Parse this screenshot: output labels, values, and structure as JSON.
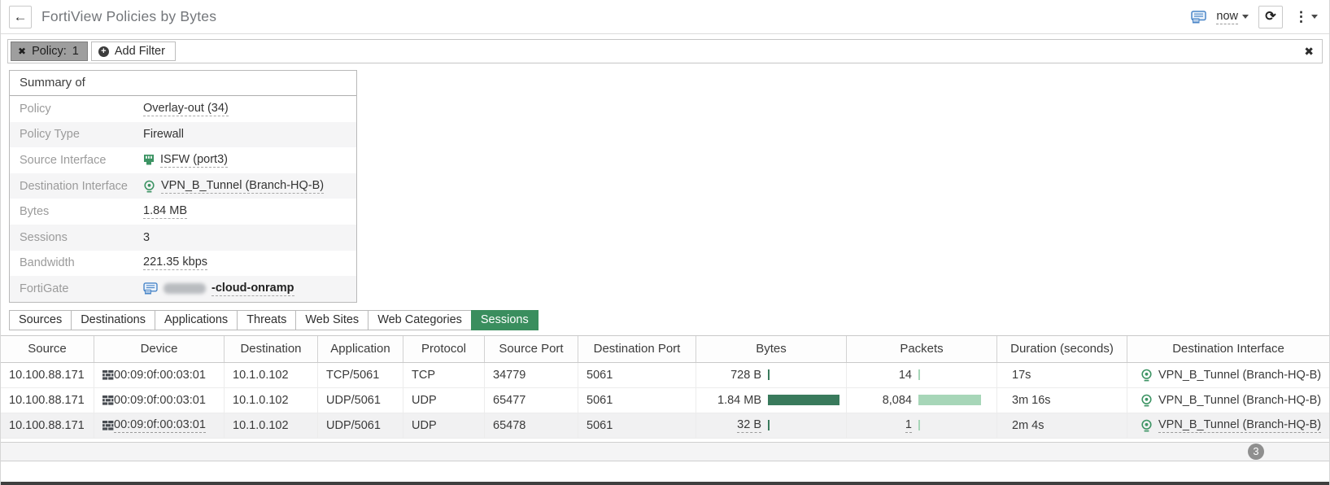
{
  "header": {
    "title": "FortiView Policies by Bytes",
    "back_label": "←",
    "time_label": "now",
    "refresh_icon": "⟳",
    "more_icon": "⋮"
  },
  "filter_bar": {
    "chip": {
      "remove_icon": "✖",
      "label": "Policy:",
      "value": "1"
    },
    "add_filter_label": "Add Filter",
    "add_filter_icon": "+",
    "close_icon": "✖"
  },
  "summary": {
    "title": "Summary of",
    "rows": [
      {
        "label": "Policy",
        "value": "Overlay-out (34)",
        "link": true
      },
      {
        "label": "Policy Type",
        "value": "Firewall",
        "link": false
      },
      {
        "label": "Source Interface",
        "value": "ISFW (port3)",
        "link": true,
        "icon": "port-icon"
      },
      {
        "label": "Destination Interface",
        "value": "VPN_B_Tunnel (Branch-HQ-B)",
        "link": true,
        "icon": "tunnel-icon"
      },
      {
        "label": "Bytes",
        "value": "1.84 MB",
        "link": true
      },
      {
        "label": "Sessions",
        "value": "3",
        "link": false
      },
      {
        "label": "Bandwidth",
        "value": "221.35 kbps",
        "link": true
      },
      {
        "label": "FortiGate",
        "value": "-cloud-onramp",
        "link": true,
        "icon": "fortigate-icon",
        "redacted_prefix": true,
        "bold": true
      }
    ]
  },
  "tabs": {
    "items": [
      "Sources",
      "Destinations",
      "Applications",
      "Threats",
      "Web Sites",
      "Web Categories",
      "Sessions"
    ],
    "active": "Sessions"
  },
  "table": {
    "columns": [
      {
        "key": "source",
        "label": "Source"
      },
      {
        "key": "device",
        "label": "Device"
      },
      {
        "key": "destination",
        "label": "Destination"
      },
      {
        "key": "application",
        "label": "Application"
      },
      {
        "key": "protocol",
        "label": "Protocol"
      },
      {
        "key": "source_port",
        "label": "Source Port"
      },
      {
        "key": "destination_port",
        "label": "Destination Port"
      },
      {
        "key": "bytes",
        "label": "Bytes"
      },
      {
        "key": "packets",
        "label": "Packets"
      },
      {
        "key": "duration",
        "label": "Duration (seconds)"
      },
      {
        "key": "destination_interface",
        "label": "Destination Interface"
      }
    ],
    "rows": [
      {
        "source": "10.100.88.171",
        "device": "00:09:0f:00:03:01",
        "destination": "10.1.0.102",
        "application": "TCP/5061",
        "protocol": "TCP",
        "source_port": "34779",
        "destination_port": "5061",
        "bytes": "728 B",
        "bytes_pct": 2,
        "packets": "14",
        "packets_pct": 2,
        "duration": "17s",
        "destination_interface": "VPN_B_Tunnel (Branch-HQ-B)",
        "highlight": false,
        "underlined": false
      },
      {
        "source": "10.100.88.171",
        "device": "00:09:0f:00:03:01",
        "destination": "10.1.0.102",
        "application": "UDP/5061",
        "protocol": "UDP",
        "source_port": "65477",
        "destination_port": "5061",
        "bytes": "1.84 MB",
        "bytes_pct": 100,
        "packets": "8,084",
        "packets_pct": 88,
        "duration": "3m 16s",
        "destination_interface": "VPN_B_Tunnel (Branch-HQ-B)",
        "highlight": false,
        "underlined": false
      },
      {
        "source": "10.100.88.171",
        "device": "00:09:0f:00:03:01",
        "destination": "10.1.0.102",
        "application": "UDP/5061",
        "protocol": "UDP",
        "source_port": "65478",
        "destination_port": "5061",
        "bytes": "32 B",
        "bytes_pct": 2,
        "packets": "1",
        "packets_pct": 2,
        "duration": "2m 4s",
        "destination_interface": "VPN_B_Tunnel (Branch-HQ-B)",
        "highlight": true,
        "underlined": true
      }
    ]
  },
  "footer": {
    "badge": "3"
  },
  "colors": {
    "accent_green": "#3a8e5e",
    "bytes_bar": "#397a5c",
    "packets_bar": "#a7d6b8",
    "icon_green": "#3d9464",
    "icon_blue": "#4a86c8",
    "chip_gray": "#9e9e9e"
  }
}
